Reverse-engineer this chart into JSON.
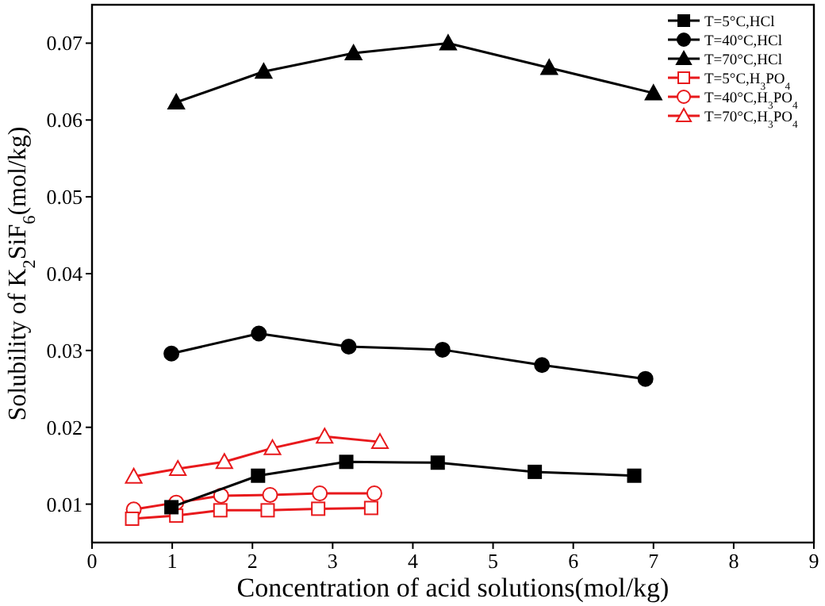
{
  "chart_data": {
    "type": "line",
    "xlabel": "Concentration of acid solutions(mol/kg)",
    "ylabel": "Solubility of K$_{2}$SiF$_{6}$(mol/kg)",
    "xlim": [
      0,
      9
    ],
    "xticks": [
      0,
      1,
      2,
      3,
      4,
      5,
      6,
      7,
      8,
      9
    ],
    "ylim": [
      0.005,
      0.075
    ],
    "yticks": [
      0.01,
      0.02,
      0.03,
      0.04,
      0.05,
      0.06,
      0.07
    ],
    "grid": false,
    "legend": "top right",
    "line_style": "solid",
    "series": [
      {
        "name": "T=5°C,HCl",
        "color": "#000000",
        "marker": "square",
        "x": [
          0.99,
          2.07,
          3.17,
          4.31,
          5.52,
          6.76
        ],
        "values": [
          0.0096,
          0.0137,
          0.0155,
          0.0154,
          0.0142,
          0.0137
        ]
      },
      {
        "name": "T=40°C,HCl",
        "color": "#000000",
        "marker": "circle",
        "x": [
          0.99,
          2.08,
          3.2,
          4.37,
          5.61,
          6.9
        ],
        "values": [
          0.0296,
          0.0322,
          0.0305,
          0.0301,
          0.0281,
          0.0263
        ]
      },
      {
        "name": "T=70°C,HCl",
        "color": "#000000",
        "marker": "triangle",
        "x": [
          1.05,
          2.14,
          3.26,
          4.44,
          5.7,
          7.0
        ],
        "values": [
          0.0623,
          0.0663,
          0.0687,
          0.07,
          0.0668,
          0.0635
        ]
      },
      {
        "name": "T=5°C,H$_{3}$PO$_{4}$",
        "color": "#e8191c",
        "marker": "square",
        "x": [
          0.5,
          1.05,
          1.6,
          2.19,
          2.82,
          3.48
        ],
        "values": [
          0.0081,
          0.0085,
          0.0092,
          0.0092,
          0.0094,
          0.0095
        ]
      },
      {
        "name": "T=40°C,H$_{3}$PO$_{4}$",
        "color": "#e8191c",
        "marker": "circle",
        "x": [
          0.52,
          1.05,
          1.61,
          2.22,
          2.84,
          3.52
        ],
        "values": [
          0.0093,
          0.0102,
          0.0111,
          0.0112,
          0.0114,
          0.0114
        ]
      },
      {
        "name": "T=70°C,H$_{3}$PO$_{4}$",
        "color": "#e8191c",
        "marker": "triangle",
        "x": [
          0.52,
          1.07,
          1.65,
          2.25,
          2.9,
          3.59
        ],
        "values": [
          0.0136,
          0.0146,
          0.0155,
          0.0173,
          0.0188,
          0.0181
        ]
      }
    ]
  }
}
